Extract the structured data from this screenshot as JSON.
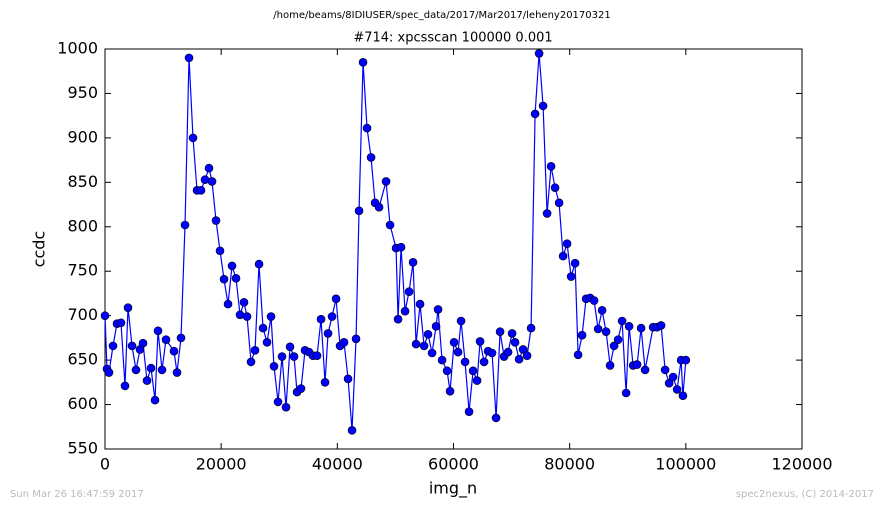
{
  "chart_data": {
    "type": "line",
    "suptitle": "/home/beams/8IDIUSER/spec_data/2017/Mar2017/leheny20170321",
    "title": "#714: xpcsscan 100000 0.001",
    "xlabel": "img_n",
    "ylabel": "ccdc",
    "footer_left": "Sun Mar 26 16:47:59 2017",
    "footer_right": "spec2nexus, (C) 2014-2017",
    "xlim": [
      0,
      120000
    ],
    "xticks": [
      0,
      20000,
      40000,
      60000,
      80000,
      100000,
      120000
    ],
    "ylim": [
      550,
      1000
    ],
    "yticks": [
      550,
      600,
      650,
      700,
      750,
      800,
      850,
      900,
      950,
      1000
    ],
    "grid": false,
    "series": [
      {
        "name": "ccdc",
        "color": "#0000ff",
        "x": [
          0,
          344,
          689,
          1378,
          2066,
          2755,
          3444,
          3961,
          4649,
          5338,
          6027,
          6544,
          7232,
          7921,
          8610,
          9127,
          9815,
          10504,
          11882,
          12398,
          13087,
          13776,
          14465,
          15154,
          15842,
          16531,
          17220,
          17909,
          18425,
          19114,
          19803,
          20492,
          21181,
          21869,
          22558,
          23247,
          23936,
          24452,
          25141,
          25830,
          26519,
          27208,
          27896,
          28585,
          29102,
          29791,
          30479,
          31168,
          31857,
          32546,
          33062,
          33751,
          34440,
          35129,
          35818,
          36506,
          37195,
          37884,
          38401,
          39089,
          39778,
          40467,
          41156,
          41845,
          42533,
          43222,
          43739,
          44428,
          45116,
          45805,
          46494,
          47183,
          48388,
          49077,
          50110,
          50455,
          50971,
          51660,
          52349,
          53038,
          53554,
          54243,
          54932,
          55621,
          56309,
          56998,
          57343,
          58031,
          58892,
          59409,
          60098,
          60787,
          61303,
          61992,
          62681,
          63370,
          64058,
          64575,
          65264,
          65953,
          66641,
          67330,
          68019,
          68708,
          69397,
          70085,
          70602,
          71291,
          71980,
          72668,
          73357,
          74046,
          74735,
          75424,
          76112,
          76801,
          77490,
          78179,
          78867,
          79556,
          80245,
          80934,
          81450,
          82139,
          82828,
          83517,
          84206,
          84894,
          85583,
          86272,
          86961,
          87650,
          88339,
          89027,
          89716,
          90233,
          90922,
          91610,
          92299,
          92988,
          94366,
          95054,
          95743,
          96432,
          97121,
          97810,
          98498,
          99187,
          99500,
          100000
        ],
        "values": [
          700,
          640,
          636,
          666,
          691,
          692,
          621,
          709,
          666,
          639,
          662,
          669,
          627,
          641,
          605,
          683,
          639,
          673,
          660,
          636,
          675,
          802,
          990,
          900,
          841,
          841,
          853,
          866,
          851,
          807,
          773,
          741,
          713,
          756,
          742,
          701,
          715,
          699,
          648,
          661,
          758,
          686,
          670,
          699,
          643,
          603,
          654,
          597,
          665,
          654,
          614,
          618,
          661,
          659,
          655,
          655,
          696,
          625,
          680,
          699,
          719,
          666,
          670,
          629,
          571,
          674,
          818,
          985,
          911,
          878,
          827,
          822,
          851,
          802,
          776,
          696,
          777,
          705,
          727,
          760,
          668,
          713,
          666,
          679,
          658,
          688,
          707,
          650,
          638,
          615,
          670,
          659,
          694,
          648,
          592,
          638,
          627,
          671,
          648,
          660,
          658,
          585,
          682,
          654,
          659,
          680,
          670,
          651,
          662,
          655,
          686,
          927,
          995,
          936,
          815,
          868,
          844,
          827,
          767,
          781,
          744,
          759,
          656,
          678,
          719,
          720,
          717,
          685,
          706,
          682,
          644,
          666,
          673,
          694,
          613,
          688,
          644,
          645,
          686,
          639,
          687,
          687,
          689,
          639,
          624,
          631,
          617,
          650,
          610,
          650
        ]
      }
    ]
  }
}
